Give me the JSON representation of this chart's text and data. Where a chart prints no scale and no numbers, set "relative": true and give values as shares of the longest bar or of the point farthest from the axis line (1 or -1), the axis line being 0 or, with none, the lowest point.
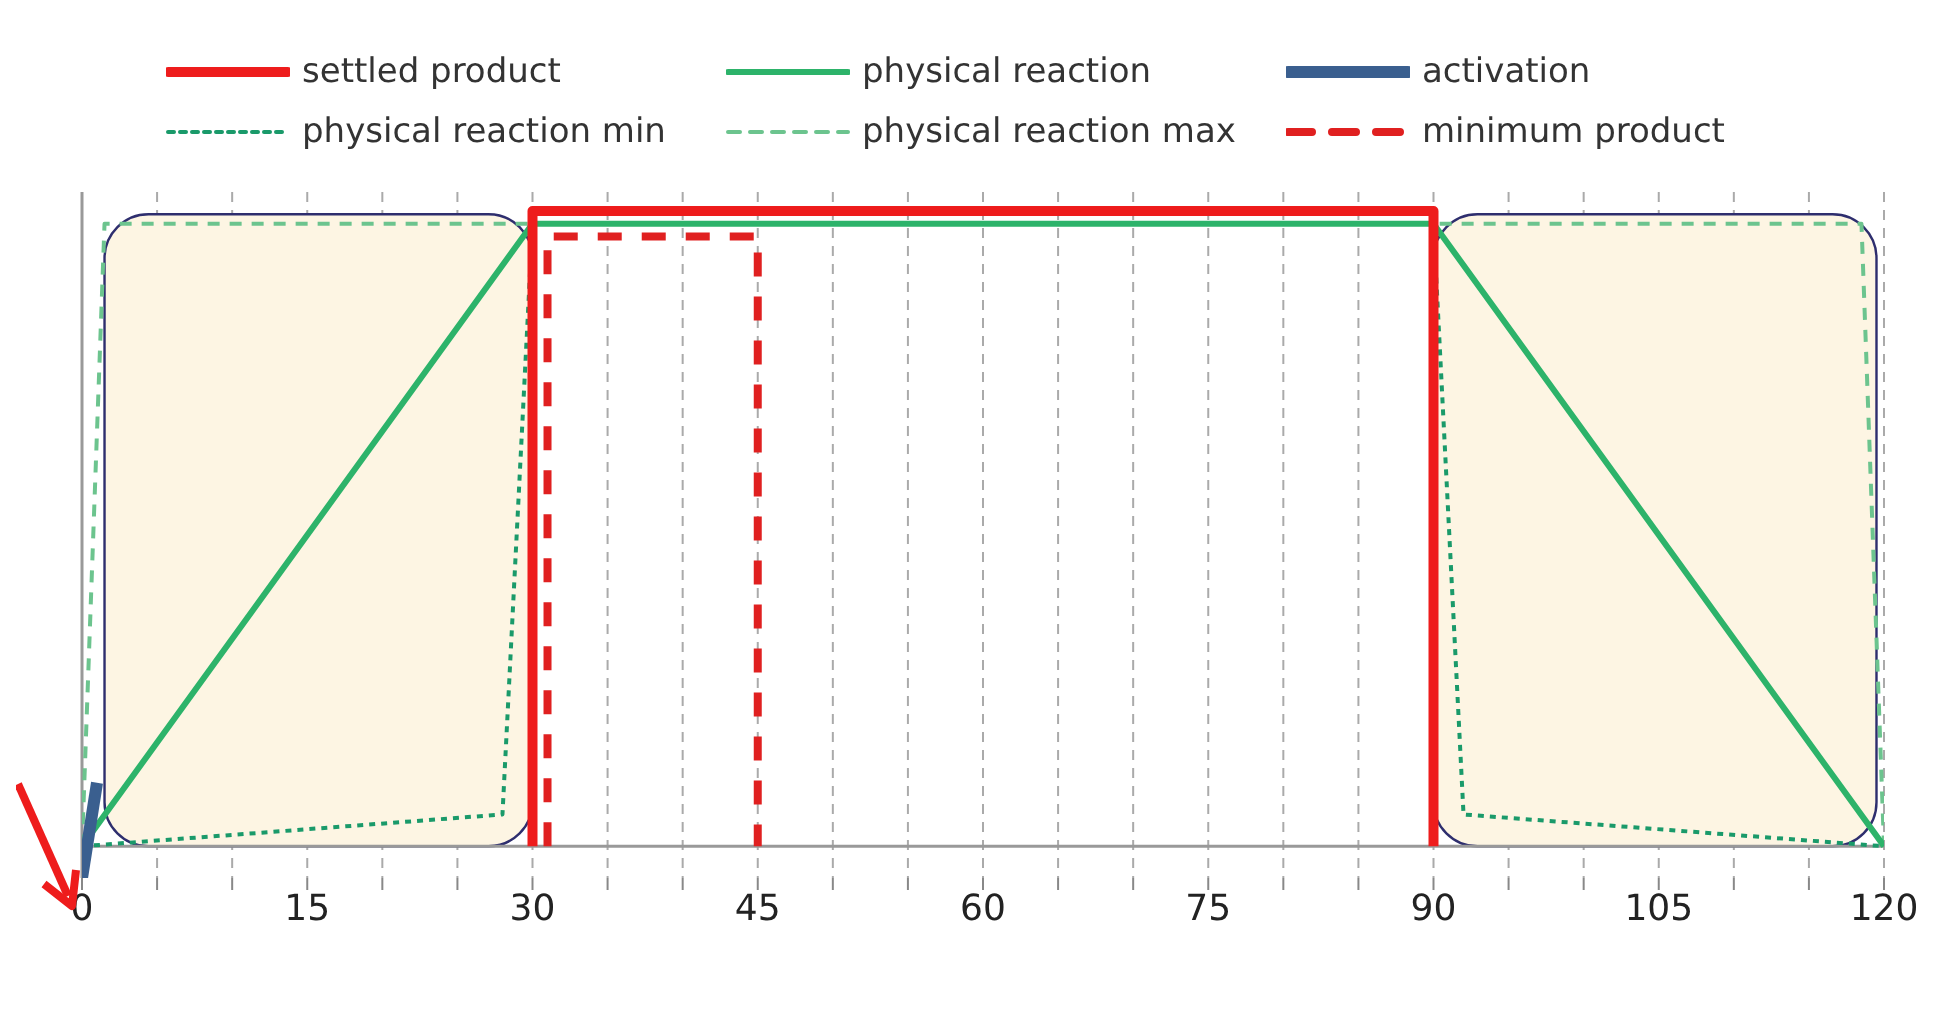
{
  "chart_data": {
    "type": "line",
    "relative": true,
    "legend": "top",
    "grid": "x",
    "xlim": [
      0,
      120
    ],
    "xticks": [
      0,
      {
        "value": 5,
        "label": null
      },
      {
        "value": 10,
        "label": null
      },
      15,
      {
        "value": 20,
        "label": null
      },
      {
        "value": 25,
        "label": null
      },
      30,
      {
        "value": 35,
        "label": null
      },
      {
        "value": 40,
        "label": null
      },
      45,
      {
        "value": 50,
        "label": null
      },
      {
        "value": 55,
        "label": null
      },
      60,
      {
        "value": 65,
        "label": null
      },
      {
        "value": 70,
        "label": null
      },
      75,
      {
        "value": 80,
        "label": null
      },
      {
        "value": 85,
        "label": null
      },
      90,
      {
        "value": 95,
        "label": null
      },
      {
        "value": 100,
        "label": null
      },
      105,
      {
        "value": 110,
        "label": null
      },
      {
        "value": 115,
        "label": null
      },
      120
    ],
    "bands": [
      {
        "axis": "x",
        "from": 1.5,
        "to": 30,
        "color": "#fdf5e3"
      },
      {
        "axis": "x",
        "from": 90,
        "to": 119.5,
        "color": "#fdf5e3"
      }
    ],
    "series": [
      {
        "name": "settled product",
        "color": "#ee1c1c",
        "line_style": "solid",
        "x": [
          30,
          30,
          90,
          90
        ],
        "values": [
          0,
          1,
          1,
          0
        ]
      },
      {
        "name": "physical reaction",
        "color": "#2db36a",
        "line_style": "solid",
        "x": [
          0,
          30,
          90,
          120
        ],
        "values": [
          0,
          0.98,
          0.98,
          0
        ]
      },
      {
        "name": "activation",
        "color": "#3a5f8f",
        "line_style": "solid",
        "x": [
          0,
          1
        ],
        "values": [
          -0.05,
          0.1
        ]
      },
      {
        "name": "physical reaction min",
        "color": "#1a9a6a",
        "line_style": "dotted",
        "x": [
          0,
          28,
          30,
          90,
          92,
          120
        ],
        "values": [
          0,
          0.05,
          0.98,
          0.98,
          0.05,
          0
        ]
      },
      {
        "name": "physical reaction max",
        "color": "#6cc48e",
        "line_style": "dashed",
        "x": [
          0,
          1.5,
          30,
          90,
          118.5,
          120
        ],
        "values": [
          0,
          0.98,
          0.98,
          0.98,
          0.98,
          0
        ]
      },
      {
        "name": "minimum product",
        "color": "#e02020",
        "line_style": "dashed",
        "x": [
          31,
          31,
          45,
          45
        ],
        "values": [
          0,
          0.96,
          0.96,
          0
        ]
      }
    ]
  }
}
